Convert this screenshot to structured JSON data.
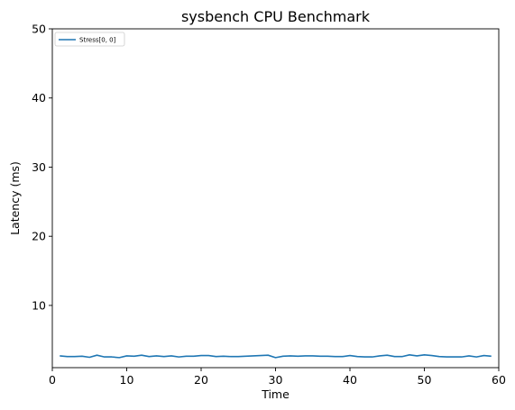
{
  "chart_data": {
    "type": "line",
    "title": "sysbench CPU Benchmark",
    "xlabel": "Time",
    "ylabel": "Latency (ms)",
    "xlim": [
      0,
      60
    ],
    "ylim": [
      1,
      50
    ],
    "xticks": [
      0,
      10,
      20,
      30,
      40,
      50,
      60
    ],
    "yticks": [
      10,
      20,
      30,
      40,
      50
    ],
    "grid": false,
    "legend_position": "top-left",
    "series": [
      {
        "name": "Stress[0, 0]",
        "color": "#1f77b4",
        "x": [
          1,
          2,
          3,
          4,
          5,
          6,
          7,
          8,
          9,
          10,
          11,
          12,
          13,
          14,
          15,
          16,
          17,
          18,
          19,
          20,
          21,
          22,
          23,
          24,
          25,
          26,
          27,
          28,
          29,
          30,
          31,
          32,
          33,
          34,
          35,
          36,
          37,
          38,
          39,
          40,
          41,
          42,
          43,
          44,
          45,
          46,
          47,
          48,
          49,
          50,
          51,
          52,
          53,
          54,
          55,
          56,
          57,
          58,
          59
        ],
        "y": [
          2.7,
          2.6,
          2.6,
          2.65,
          2.5,
          2.8,
          2.55,
          2.55,
          2.45,
          2.7,
          2.65,
          2.8,
          2.6,
          2.7,
          2.6,
          2.7,
          2.55,
          2.65,
          2.65,
          2.75,
          2.75,
          2.6,
          2.65,
          2.6,
          2.6,
          2.65,
          2.7,
          2.75,
          2.8,
          2.45,
          2.65,
          2.7,
          2.65,
          2.7,
          2.7,
          2.65,
          2.65,
          2.6,
          2.6,
          2.75,
          2.6,
          2.55,
          2.55,
          2.7,
          2.8,
          2.6,
          2.6,
          2.85,
          2.7,
          2.85,
          2.75,
          2.6,
          2.55,
          2.55,
          2.55,
          2.7,
          2.55,
          2.75,
          2.65
        ]
      }
    ]
  }
}
